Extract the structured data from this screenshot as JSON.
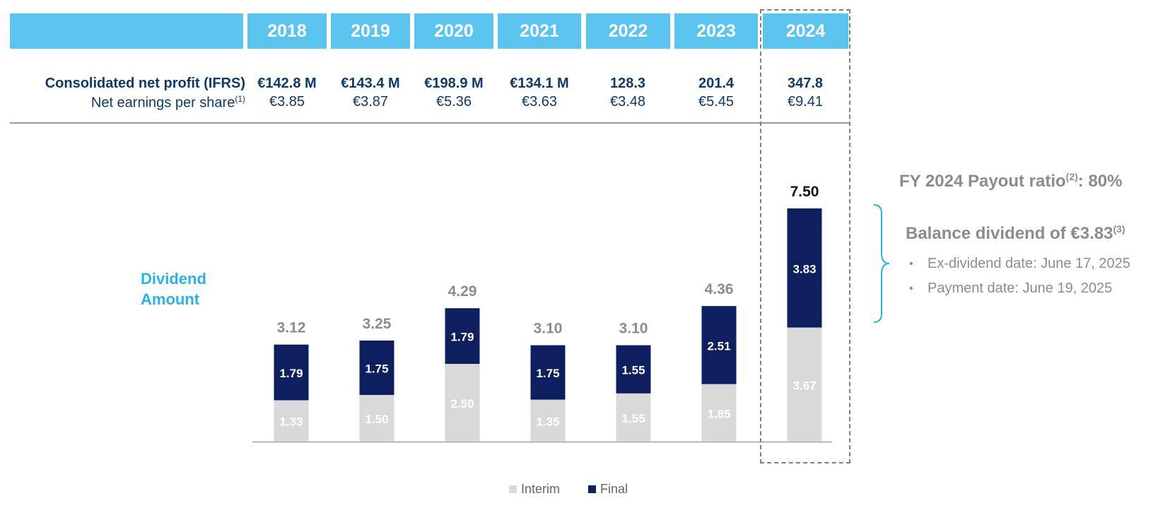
{
  "table": {
    "years": [
      "2018",
      "2019",
      "2020",
      "2021",
      "2022",
      "2023",
      "2024"
    ],
    "row_labels": {
      "profit": "Consolidated net profit (IFRS)",
      "eps": "Net earnings per share",
      "eps_note": "(1)"
    },
    "profit": [
      "€142.8 M",
      "€143.4 M",
      "€198.9 M",
      "€134.1 M",
      "128.3",
      "201.4",
      "347.8"
    ],
    "eps": [
      "€3.85",
      "€3.87",
      "€5.36",
      "€3.63",
      "€3.48",
      "€5.45",
      "€9.41"
    ]
  },
  "side_label": [
    "Dividend",
    "Amount"
  ],
  "chart_data": {
    "type": "bar",
    "stacked": true,
    "categories": [
      "2018",
      "2019",
      "2020",
      "2021",
      "2022",
      "2023",
      "2024"
    ],
    "series": [
      {
        "name": "Interim",
        "values": [
          1.33,
          1.5,
          2.5,
          1.35,
          1.55,
          1.85,
          3.67
        ]
      },
      {
        "name": "Final",
        "values": [
          1.79,
          1.75,
          1.79,
          1.75,
          1.55,
          2.51,
          3.83
        ]
      }
    ],
    "totals": [
      3.12,
      3.25,
      4.29,
      3.1,
      3.1,
      4.36,
      7.5
    ],
    "total_labels": [
      "3.12",
      "3.25",
      "4.29",
      "3.10",
      "3.10",
      "4.36",
      "7.50"
    ],
    "interim_labels": [
      "1.33",
      "1.50",
      "2.50",
      "1.35",
      "1.55",
      "1.85",
      "3.67"
    ],
    "final_labels": [
      "1.79",
      "1.75",
      "1.79",
      "1.75",
      "1.55",
      "2.51",
      "3.83"
    ],
    "legend": [
      "Interim",
      "Final"
    ],
    "legend_position": "bottom",
    "highlighted_category": "2024"
  },
  "colors": {
    "interim": "#d9d9d9",
    "final": "#0d1f5e",
    "header": "#5bc5ef",
    "accent": "#27b4e4",
    "total_label": "#8c8c8c",
    "total_label_highlight": "#111111"
  },
  "notes": {
    "payout": "FY 2024 Payout ratio",
    "payout_ref": "(2)",
    "payout_value": ": 80%",
    "balance": "Balance dividend of €3.83",
    "balance_ref": "(3)",
    "bullets": [
      "Ex-dividend date: June 17, 2025",
      "Payment date: June 19, 2025"
    ],
    "bullet_symbol": "•"
  }
}
